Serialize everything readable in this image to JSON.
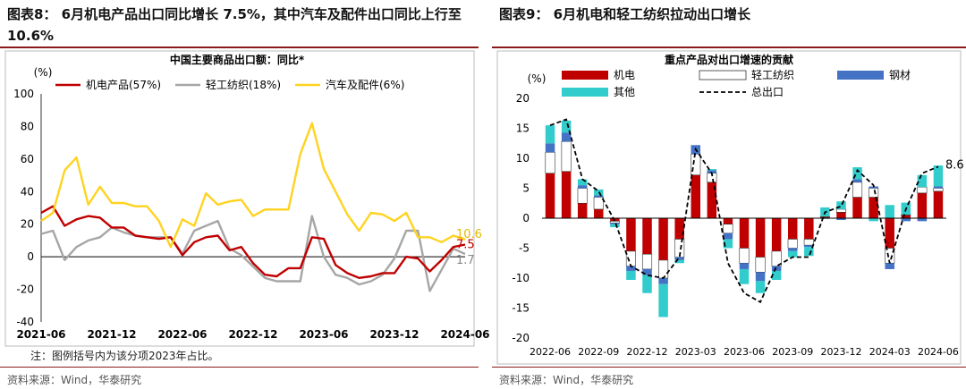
{
  "left": {
    "figure_title": "图表8： 6月机电产品出口同比增长 7.5%，其中汽车及配件出口同比上行至 10.6%",
    "note": "注：图例括号内为该分项2023年占比。",
    "source": "资料来源：Wind，华泰研究"
  },
  "right": {
    "figure_title": "图表9： 6月机电和轻工纺织拉动出口增长",
    "source": "资料来源：Wind，华泰研究"
  },
  "colors": {
    "red": "#C00000",
    "gray": "#A6A6A6",
    "yellow": "#FFD320",
    "blue": "#4472C4",
    "cyan": "#33CCCC",
    "white": "#FFFFFF",
    "title_rule": "#8B1A1A"
  },
  "chart_data": [
    {
      "type": "line",
      "title": "中国主要商品出口额：同比*",
      "ylabel": "(%)",
      "ylim": [
        -40,
        100
      ],
      "yticks": [
        -40,
        -20,
        0,
        20,
        40,
        60,
        80,
        100
      ],
      "xtick_labels": [
        "2021-06",
        "2021-12",
        "2022-06",
        "2022-12",
        "2023-06",
        "2023-12",
        "2024-06"
      ],
      "x": [
        "2021-06",
        "2021-07",
        "2021-08",
        "2021-09",
        "2021-10",
        "2021-11",
        "2021-12",
        "2022-01",
        "2022-02",
        "2022-03",
        "2022-04",
        "2022-05",
        "2022-06",
        "2022-07",
        "2022-08",
        "2022-09",
        "2022-10",
        "2022-11",
        "2022-12",
        "2023-01",
        "2023-02",
        "2023-03",
        "2023-04",
        "2023-05",
        "2023-06",
        "2023-07",
        "2023-08",
        "2023-09",
        "2023-10",
        "2023-11",
        "2023-12",
        "2024-01",
        "2024-02",
        "2024-03",
        "2024-04",
        "2024-05",
        "2024-06"
      ],
      "series": [
        {
          "name": "机电产品(57%)",
          "color": "red",
          "values": [
            27,
            31,
            19,
            23,
            25,
            24,
            18,
            18,
            13,
            12,
            11,
            12,
            1,
            9,
            12,
            13,
            4,
            6,
            -4,
            -11,
            -12,
            -7,
            -7,
            12,
            11,
            -5,
            -10,
            -13,
            -12,
            -10,
            -10,
            0,
            -1,
            -9,
            -2,
            6,
            7.5
          ]
        },
        {
          "name": "轻工纺织(18%)",
          "color": "gray",
          "values": [
            14,
            16,
            -2,
            6,
            10,
            12,
            18,
            15,
            13,
            12,
            12,
            12,
            2,
            16,
            19,
            22,
            5,
            1,
            -6,
            -13,
            -15,
            -15,
            -15,
            25,
            0,
            -11,
            -13,
            -17,
            -15,
            -11,
            -1,
            16,
            16,
            -21,
            -8,
            5,
            1.7
          ]
        },
        {
          "name": "汽车及配件(6%)",
          "color": "yellow",
          "values": [
            22,
            27,
            53,
            61,
            32,
            43,
            33,
            33,
            31,
            31,
            22,
            6,
            23,
            19,
            39,
            32,
            34,
            35,
            25,
            29,
            29,
            29,
            63,
            82,
            54,
            40,
            26,
            16,
            27,
            26,
            22,
            27,
            12,
            12,
            9,
            13,
            10.6
          ]
        }
      ],
      "end_labels": [
        "10.6",
        "7.5",
        "1.7"
      ]
    },
    {
      "type": "bar",
      "stacked": true,
      "title": "重点产品对出口增速的贡献",
      "ylabel": "(%)",
      "ylim": [
        -20,
        20
      ],
      "yticks": [
        -20,
        -15,
        -10,
        -5,
        0,
        5,
        10,
        15,
        20
      ],
      "xtick_labels": [
        "2022-06",
        "2022-09",
        "2022-12",
        "2023-03",
        "2023-06",
        "2023-09",
        "2023-12",
        "2024-03",
        "2024-06"
      ],
      "categories": [
        "2022-06",
        "2022-07",
        "2022-08",
        "2022-09",
        "2022-10",
        "2022-11",
        "2022-12",
        "2023-01",
        "2023-02",
        "2023-03",
        "2023-04",
        "2023-05",
        "2023-06",
        "2023-07",
        "2023-08",
        "2023-09",
        "2023-10",
        "2023-11",
        "2023-12",
        "2024-01",
        "2024-02",
        "2024-03",
        "2024-04",
        "2024-05",
        "2024-06"
      ],
      "series": [
        {
          "name": "机电",
          "color": "red",
          "values": [
            7.5,
            7.8,
            2.5,
            1.5,
            -0.5,
            -5.5,
            -6.0,
            -7.0,
            -3.5,
            7.2,
            6.0,
            -1.0,
            -5.0,
            -6.5,
            -5.5,
            -3.5,
            -3.5,
            0.2,
            1.0,
            3.5,
            3.5,
            -5.0,
            0.5,
            4.2,
            4.5
          ]
        },
        {
          "name": "轻工纺织",
          "color": "white",
          "values": [
            3.5,
            5.0,
            2.5,
            2.0,
            -0.3,
            -2.5,
            -2.5,
            -3.0,
            -3.0,
            3.5,
            1.5,
            -1.5,
            -2.5,
            -2.5,
            -2.5,
            -1.5,
            -1.0,
            0.1,
            0.5,
            2.5,
            1.5,
            -2.5,
            0.1,
            1.0,
            0.5
          ]
        },
        {
          "name": "钢材",
          "color": "blue",
          "values": [
            1.5,
            1.5,
            0.5,
            0.3,
            -0.2,
            -0.8,
            -1.0,
            -1.0,
            -0.5,
            1.5,
            0.5,
            -1.0,
            -1.0,
            -1.5,
            -0.8,
            -0.5,
            -0.3,
            -0.1,
            -0.3,
            0.5,
            0.3,
            -1.0,
            -0.5,
            -0.5,
            0.3
          ]
        },
        {
          "name": "其他",
          "color": "cyan",
          "values": [
            3.0,
            2.0,
            1.0,
            1.0,
            -0.5,
            -1.5,
            -3.0,
            -5.5,
            -0.5,
            0,
            0.2,
            -1.5,
            -2.5,
            -2.0,
            -1.5,
            -1.0,
            -1.5,
            1.5,
            1.3,
            2.0,
            -0.5,
            2.2,
            2.0,
            2.0,
            3.5
          ]
        }
      ],
      "line": {
        "name": "总出口",
        "values": [
          15.5,
          16.5,
          6.5,
          4.5,
          -0.5,
          -8.0,
          -9.5,
          -10.0,
          -6.5,
          11.5,
          7.5,
          -7.5,
          -12.5,
          -14.0,
          -8.0,
          -6.5,
          -6.5,
          1.0,
          2.0,
          8.0,
          5.5,
          -7.5,
          1.5,
          7.5,
          8.6
        ]
      },
      "end_label": "8.6"
    }
  ]
}
